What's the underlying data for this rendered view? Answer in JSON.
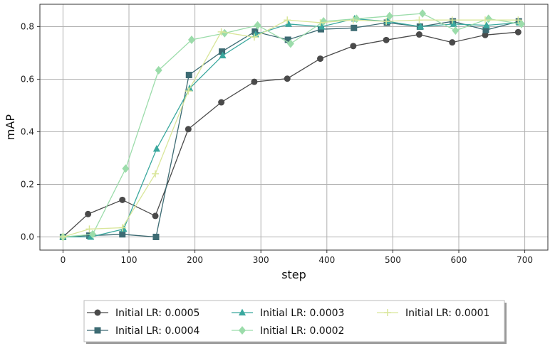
{
  "chart_data": {
    "type": "line",
    "xlabel": "step",
    "ylabel": "mAP",
    "xlim": [
      -35,
      735
    ],
    "ylim": [
      -0.05,
      0.885
    ],
    "xticks": [
      0,
      100,
      200,
      300,
      400,
      500,
      600,
      700
    ],
    "yticks": [
      0.0,
      0.2,
      0.4,
      0.6,
      0.8
    ],
    "xtick_labels": [
      "0",
      "100",
      "200",
      "300",
      "400",
      "500",
      "600",
      "700"
    ],
    "ytick_labels": [
      "0.0",
      "0.2",
      "0.4",
      "0.6",
      "0.8"
    ],
    "grid": true,
    "legend_placement": "below",
    "series": [
      {
        "name": "Initial LR: 0.0005",
        "color": "#4a4a4a",
        "marker": "circle",
        "x": [
          0,
          38,
          90,
          140,
          190,
          240,
          290,
          340,
          390,
          440,
          490,
          540,
          590,
          640,
          690
        ],
        "y": [
          0.0,
          0.087,
          0.141,
          0.08,
          0.41,
          0.512,
          0.59,
          0.602,
          0.678,
          0.726,
          0.749,
          0.77,
          0.74,
          0.768,
          0.779
        ]
      },
      {
        "name": "Initial LR: 0.0004",
        "color": "#3d6b73",
        "marker": "square",
        "x": [
          0,
          40,
          90,
          141,
          191,
          241,
          291,
          341,
          391,
          441,
          491,
          541,
          591,
          641,
          691
        ],
        "y": [
          0.0,
          0.005,
          0.01,
          0.0,
          0.616,
          0.705,
          0.781,
          0.75,
          0.79,
          0.795,
          0.815,
          0.8,
          0.82,
          0.787,
          0.82
        ]
      },
      {
        "name": "Initial LR: 0.0003",
        "color": "#3aa89e",
        "marker": "triangle",
        "x": [
          0,
          42,
          92,
          142,
          192,
          242,
          292,
          342,
          392,
          442,
          492,
          542,
          592,
          642,
          692
        ],
        "y": [
          0.0,
          0.0,
          0.03,
          0.335,
          0.565,
          0.69,
          0.77,
          0.81,
          0.8,
          0.83,
          0.82,
          0.8,
          0.81,
          0.805,
          0.815
        ]
      },
      {
        "name": "Initial LR: 0.0002",
        "color": "#9bdcaa",
        "marker": "diamond",
        "x": [
          0,
          45,
          95,
          145,
          195,
          245,
          295,
          345,
          395,
          445,
          495,
          545,
          595,
          645,
          695
        ],
        "y": [
          0.0,
          0.01,
          0.26,
          0.634,
          0.75,
          0.775,
          0.805,
          0.735,
          0.82,
          0.83,
          0.84,
          0.85,
          0.785,
          0.83,
          0.81
        ]
      },
      {
        "name": "Initial LR: 0.0001",
        "color": "#d9e69a",
        "marker": "plus",
        "x": [
          0,
          40,
          90,
          140,
          190,
          240,
          290,
          340,
          390,
          440,
          490,
          540,
          590,
          640,
          690
        ],
        "y": [
          0.0,
          0.03,
          0.035,
          0.24,
          0.555,
          0.78,
          0.76,
          0.825,
          0.815,
          0.825,
          0.82,
          0.825,
          0.825,
          0.825,
          0.825
        ]
      }
    ]
  }
}
